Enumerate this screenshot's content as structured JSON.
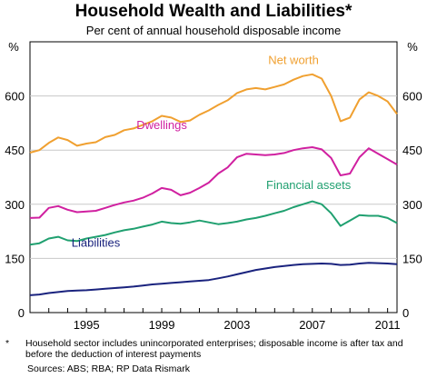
{
  "chart_data": {
    "type": "line",
    "title": "Household Wealth and Liabilities*",
    "subtitle": "Per cent of annual household disposable income",
    "y_unit_left": "%",
    "y_unit_right": "%",
    "ylim": [
      0,
      750
    ],
    "y_ticks": [
      0,
      150,
      300,
      450,
      600
    ],
    "x_range": [
      1992.0,
      2011.5
    ],
    "x_ticks": [
      1995,
      1999,
      2003,
      2007,
      2011
    ],
    "grid": "horizontal",
    "series": [
      {
        "name": "Net worth",
        "color": "#F0A030",
        "x": [
          1992.0,
          1992.5,
          1993.0,
          1993.5,
          1994.0,
          1994.5,
          1995.0,
          1995.5,
          1996.0,
          1996.5,
          1997.0,
          1997.5,
          1998.0,
          1998.5,
          1999.0,
          1999.5,
          2000.0,
          2000.5,
          2001.0,
          2001.5,
          2002.0,
          2002.5,
          2003.0,
          2003.5,
          2004.0,
          2004.5,
          2005.0,
          2005.5,
          2006.0,
          2006.5,
          2007.0,
          2007.5,
          2008.0,
          2008.5,
          2009.0,
          2009.5,
          2010.0,
          2010.5,
          2011.0,
          2011.5
        ],
        "y": [
          443,
          450,
          470,
          485,
          478,
          462,
          468,
          472,
          486,
          492,
          505,
          510,
          520,
          530,
          545,
          540,
          528,
          532,
          548,
          560,
          575,
          588,
          608,
          618,
          622,
          618,
          625,
          632,
          645,
          655,
          660,
          648,
          600,
          530,
          540,
          590,
          610,
          600,
          585,
          550
        ]
      },
      {
        "name": "Dwellings",
        "color": "#D020A0",
        "x": [
          1992.0,
          1992.5,
          1993.0,
          1993.5,
          1994.0,
          1994.5,
          1995.0,
          1995.5,
          1996.0,
          1996.5,
          1997.0,
          1997.5,
          1998.0,
          1998.5,
          1999.0,
          1999.5,
          2000.0,
          2000.5,
          2001.0,
          2001.5,
          2002.0,
          2002.5,
          2003.0,
          2003.5,
          2004.0,
          2004.5,
          2005.0,
          2005.5,
          2006.0,
          2006.5,
          2007.0,
          2007.5,
          2008.0,
          2008.5,
          2009.0,
          2009.5,
          2010.0,
          2010.5,
          2011.0,
          2011.5
        ],
        "y": [
          262,
          263,
          290,
          295,
          285,
          278,
          280,
          282,
          290,
          298,
          305,
          310,
          318,
          330,
          345,
          340,
          325,
          332,
          345,
          360,
          385,
          402,
          430,
          440,
          438,
          436,
          438,
          442,
          450,
          455,
          458,
          452,
          428,
          380,
          385,
          430,
          455,
          440,
          425,
          410
        ]
      },
      {
        "name": "Financial assets",
        "color": "#20A070",
        "x": [
          1992.0,
          1992.5,
          1993.0,
          1993.5,
          1994.0,
          1994.5,
          1995.0,
          1995.5,
          1996.0,
          1996.5,
          1997.0,
          1997.5,
          1998.0,
          1998.5,
          1999.0,
          1999.5,
          2000.0,
          2000.5,
          2001.0,
          2001.5,
          2002.0,
          2002.5,
          2003.0,
          2003.5,
          2004.0,
          2004.5,
          2005.0,
          2005.5,
          2006.0,
          2006.5,
          2007.0,
          2007.5,
          2008.0,
          2008.5,
          2009.0,
          2009.5,
          2010.0,
          2010.5,
          2011.0,
          2011.5
        ],
        "y": [
          188,
          192,
          205,
          210,
          200,
          198,
          205,
          210,
          215,
          222,
          228,
          232,
          238,
          244,
          252,
          248,
          246,
          250,
          255,
          250,
          245,
          248,
          252,
          258,
          262,
          268,
          275,
          282,
          292,
          300,
          308,
          300,
          275,
          240,
          255,
          270,
          268,
          268,
          262,
          248
        ]
      },
      {
        "name": "Liabilities",
        "color": "#1A237E",
        "x": [
          1992.0,
          1992.5,
          1993.0,
          1993.5,
          1994.0,
          1994.5,
          1995.0,
          1995.5,
          1996.0,
          1996.5,
          1997.0,
          1997.5,
          1998.0,
          1998.5,
          1999.0,
          1999.5,
          2000.0,
          2000.5,
          2001.0,
          2001.5,
          2002.0,
          2002.5,
          2003.0,
          2003.5,
          2004.0,
          2004.5,
          2005.0,
          2005.5,
          2006.0,
          2006.5,
          2007.0,
          2007.5,
          2008.0,
          2008.5,
          2009.0,
          2009.5,
          2010.0,
          2010.5,
          2011.0,
          2011.5
        ],
        "y": [
          48,
          50,
          54,
          57,
          60,
          61,
          62,
          64,
          66,
          68,
          70,
          72,
          75,
          78,
          80,
          82,
          84,
          86,
          88,
          90,
          95,
          100,
          106,
          112,
          118,
          122,
          126,
          129,
          132,
          134,
          135,
          136,
          135,
          132,
          133,
          136,
          138,
          137,
          136,
          134
        ]
      }
    ],
    "series_labels": [
      {
        "text": "Net worth",
        "x": 2006.0,
        "y": 688
      },
      {
        "text": "Dwellings",
        "x": 1999.0,
        "y": 508
      },
      {
        "text": "Financial assets",
        "x": 2006.8,
        "y": 342
      },
      {
        "text": "Liabilities",
        "x": 1995.5,
        "y": 182
      }
    ]
  },
  "footnote": {
    "marker": "*",
    "text": "Household sector includes unincorporated enterprises; disposable income is after tax and before the deduction of interest payments"
  },
  "sources": "Sources: ABS; RBA; RP Data Rismark"
}
